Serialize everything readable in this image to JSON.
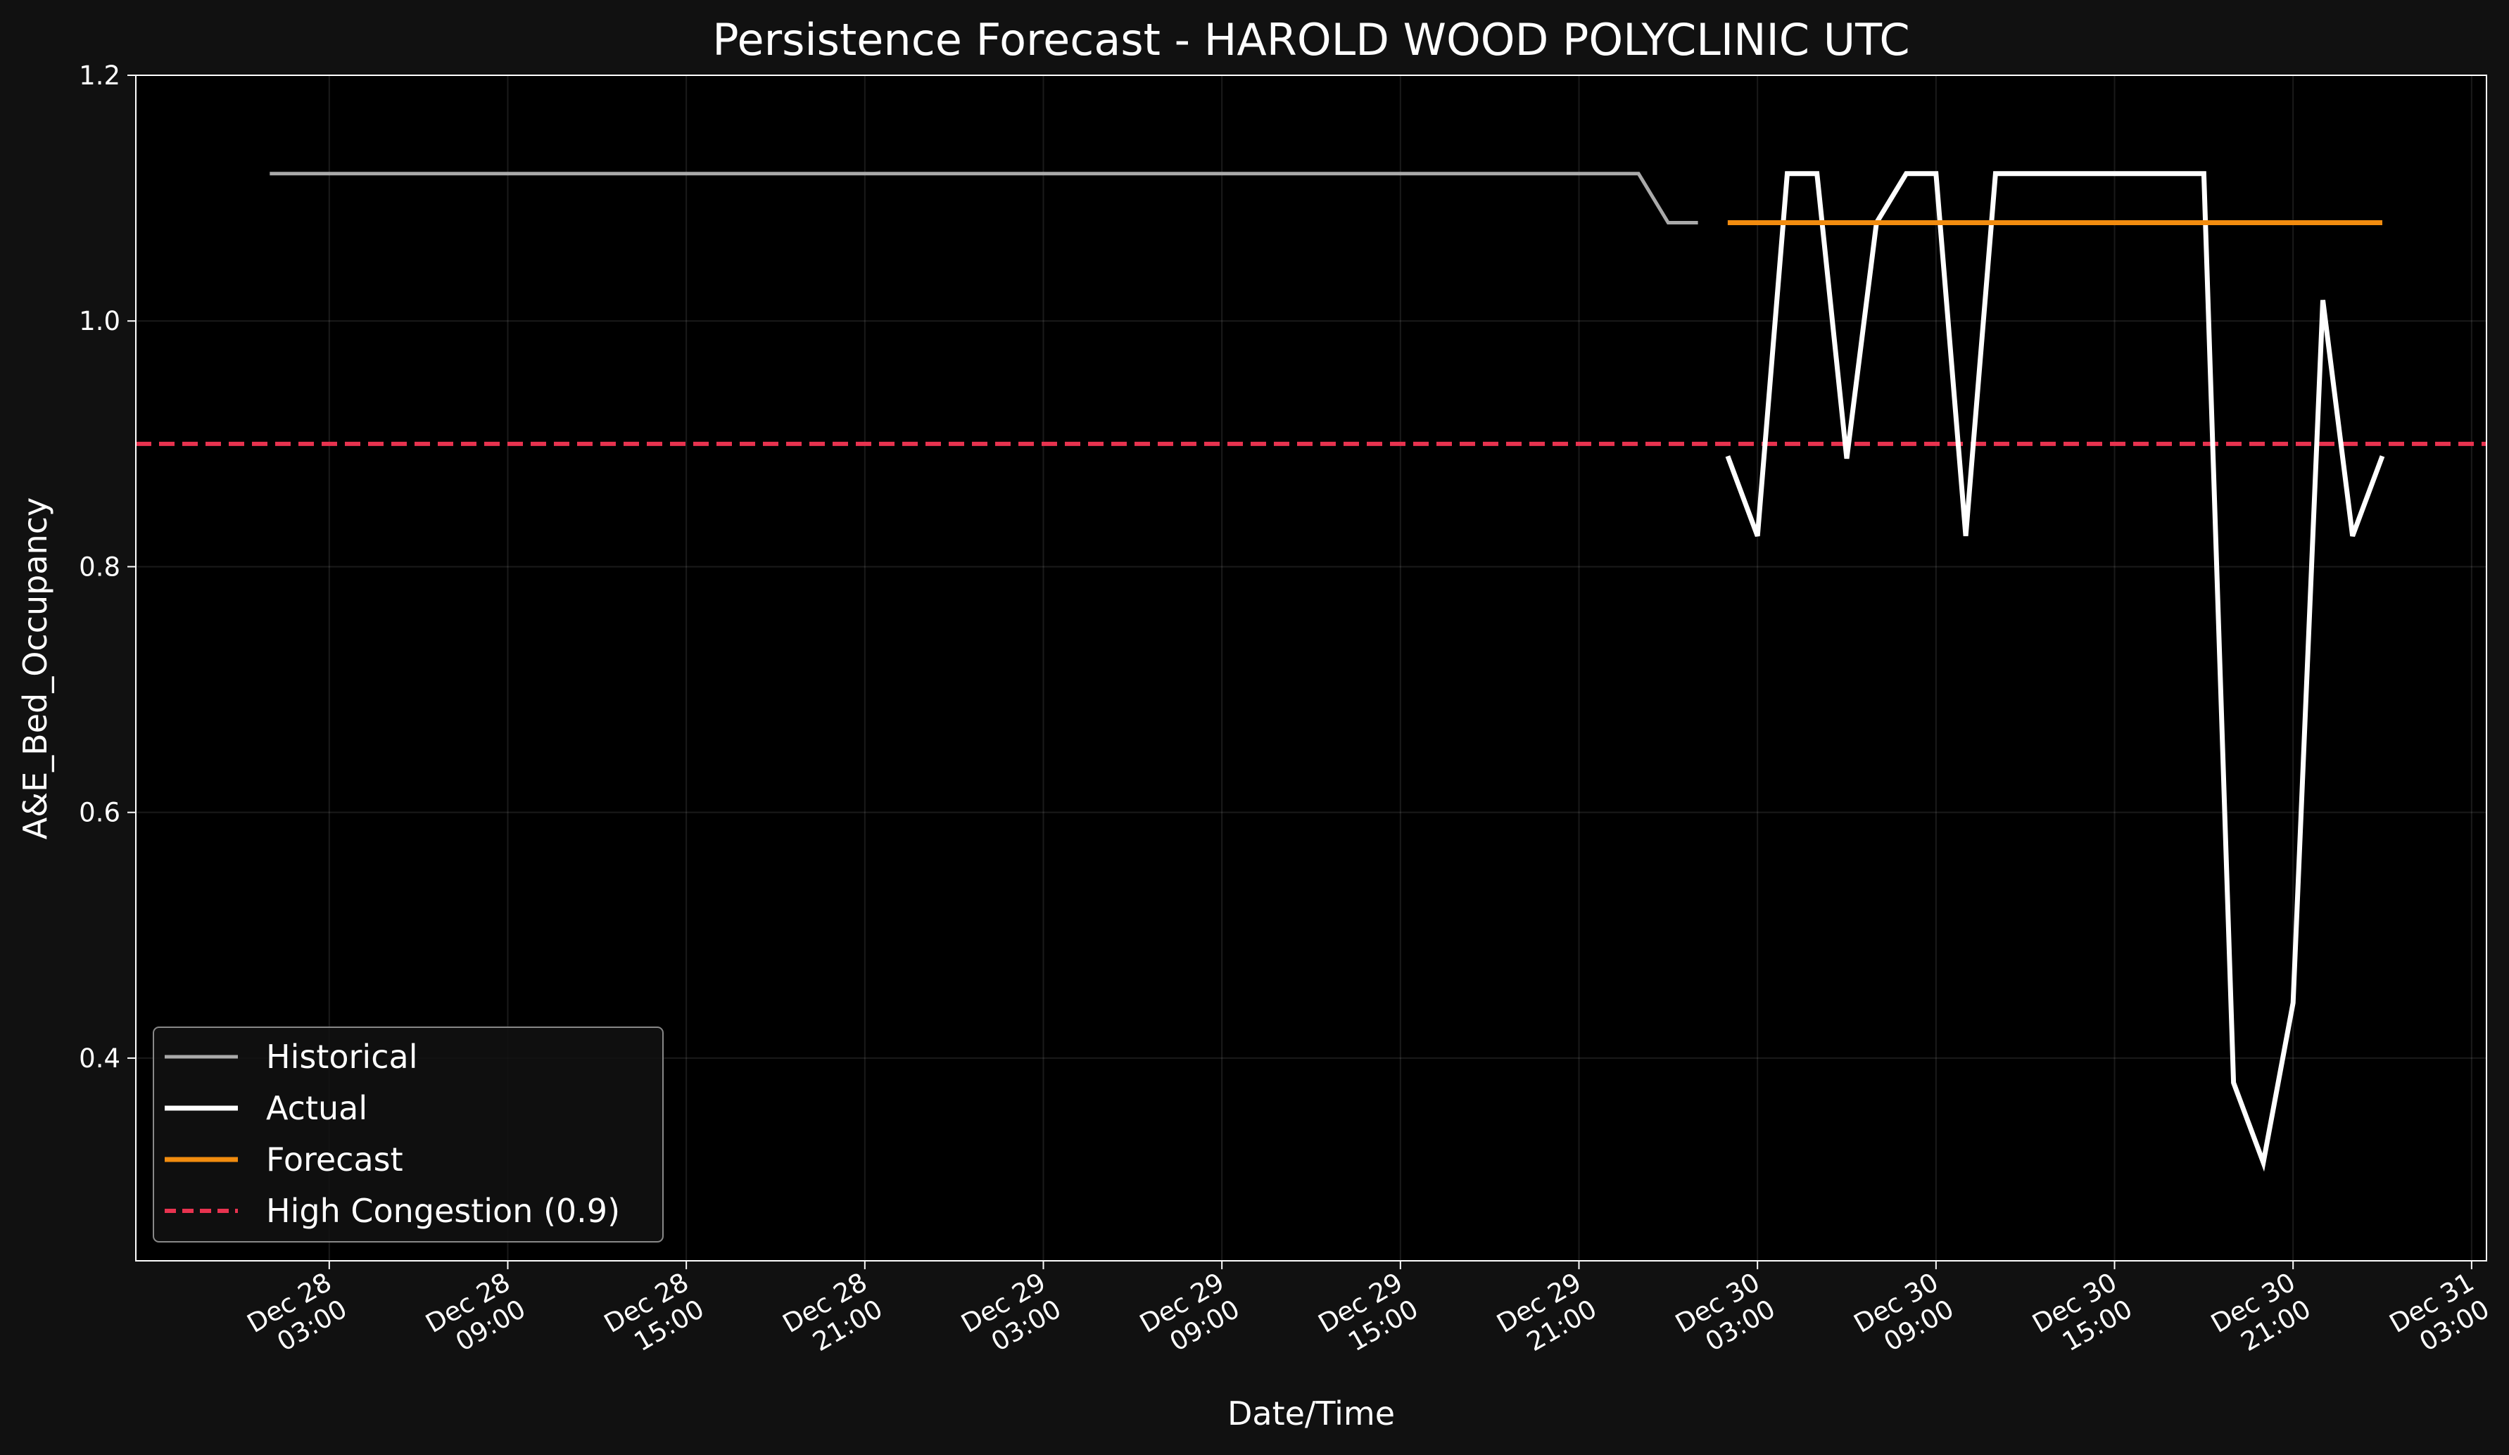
{
  "chart_data": {
    "type": "line",
    "title": "Persistence Forecast - HAROLD WOOD POLYCLINIC UTC",
    "xlabel": "Date/Time",
    "ylabel": "A&E_Bed_Occupancy",
    "xlim": [
      "2025-12-27 20:30",
      "2025-12-31 03:30"
    ],
    "ylim": [
      0.235,
      1.2
    ],
    "yticks": [
      0.4,
      0.6,
      0.8,
      1.0,
      1.2
    ],
    "ytick_labels": [
      "0.4",
      "0.6",
      "0.8",
      "1.0",
      "1.2"
    ],
    "xticks": [
      {
        "at": "2025-12-28 03:00",
        "line1": "Dec 28",
        "line2": "03:00"
      },
      {
        "at": "2025-12-28 09:00",
        "line1": "Dec 28",
        "line2": "09:00"
      },
      {
        "at": "2025-12-28 15:00",
        "line1": "Dec 28",
        "line2": "15:00"
      },
      {
        "at": "2025-12-28 21:00",
        "line1": "Dec 28",
        "line2": "21:00"
      },
      {
        "at": "2025-12-29 03:00",
        "line1": "Dec 29",
        "line2": "03:00"
      },
      {
        "at": "2025-12-29 09:00",
        "line1": "Dec 29",
        "line2": "09:00"
      },
      {
        "at": "2025-12-29 15:00",
        "line1": "Dec 29",
        "line2": "15:00"
      },
      {
        "at": "2025-12-29 21:00",
        "line1": "Dec 29",
        "line2": "21:00"
      },
      {
        "at": "2025-12-30 03:00",
        "line1": "Dec 30",
        "line2": "03:00"
      },
      {
        "at": "2025-12-30 09:00",
        "line1": "Dec 30",
        "line2": "09:00"
      },
      {
        "at": "2025-12-30 15:00",
        "line1": "Dec 30",
        "line2": "15:00"
      },
      {
        "at": "2025-12-30 21:00",
        "line1": "Dec 30",
        "line2": "21:00"
      },
      {
        "at": "2025-12-31 03:00",
        "line1": "Dec 31",
        "line2": "03:00"
      }
    ],
    "grid": true,
    "legend_position": "lower-left",
    "series": [
      {
        "name": "Historical",
        "color": "#aaaaaa",
        "points": [
          [
            "2025-12-28 01:00",
            1.12
          ],
          [
            "2025-12-29 23:00",
            1.12
          ],
          [
            "2025-12-30 00:00",
            1.08
          ],
          [
            "2025-12-30 01:00",
            1.08
          ]
        ]
      },
      {
        "name": "Actual",
        "color": "#ffffff",
        "points": [
          [
            "2025-12-30 02:00",
            0.89
          ],
          [
            "2025-12-30 03:00",
            0.825
          ],
          [
            "2025-12-30 04:00",
            1.12
          ],
          [
            "2025-12-30 05:00",
            1.12
          ],
          [
            "2025-12-30 06:00",
            0.888
          ],
          [
            "2025-12-30 07:00",
            1.08
          ],
          [
            "2025-12-30 08:00",
            1.12
          ],
          [
            "2025-12-30 09:00",
            1.12
          ],
          [
            "2025-12-30 10:00",
            0.825
          ],
          [
            "2025-12-30 11:00",
            1.12
          ],
          [
            "2025-12-30 12:00",
            1.12
          ],
          [
            "2025-12-30 13:00",
            1.12
          ],
          [
            "2025-12-30 14:00",
            1.12
          ],
          [
            "2025-12-30 15:00",
            1.12
          ],
          [
            "2025-12-30 16:00",
            1.12
          ],
          [
            "2025-12-30 17:00",
            1.12
          ],
          [
            "2025-12-30 18:00",
            1.12
          ],
          [
            "2025-12-30 19:00",
            0.38
          ],
          [
            "2025-12-30 20:00",
            0.315
          ],
          [
            "2025-12-30 21:00",
            0.445
          ],
          [
            "2025-12-30 22:00",
            1.017
          ],
          [
            "2025-12-30 23:00",
            0.825
          ],
          [
            "2025-12-31 00:00",
            0.89
          ]
        ]
      },
      {
        "name": "Forecast",
        "color": "#f28c0f",
        "points": [
          [
            "2025-12-30 02:00",
            1.08
          ],
          [
            "2025-12-31 00:00",
            1.08
          ]
        ]
      }
    ],
    "reference_lines": [
      {
        "name": "High Congestion (0.9)",
        "y": 0.9,
        "color": "#e8334f",
        "style": "dashed"
      }
    ]
  }
}
